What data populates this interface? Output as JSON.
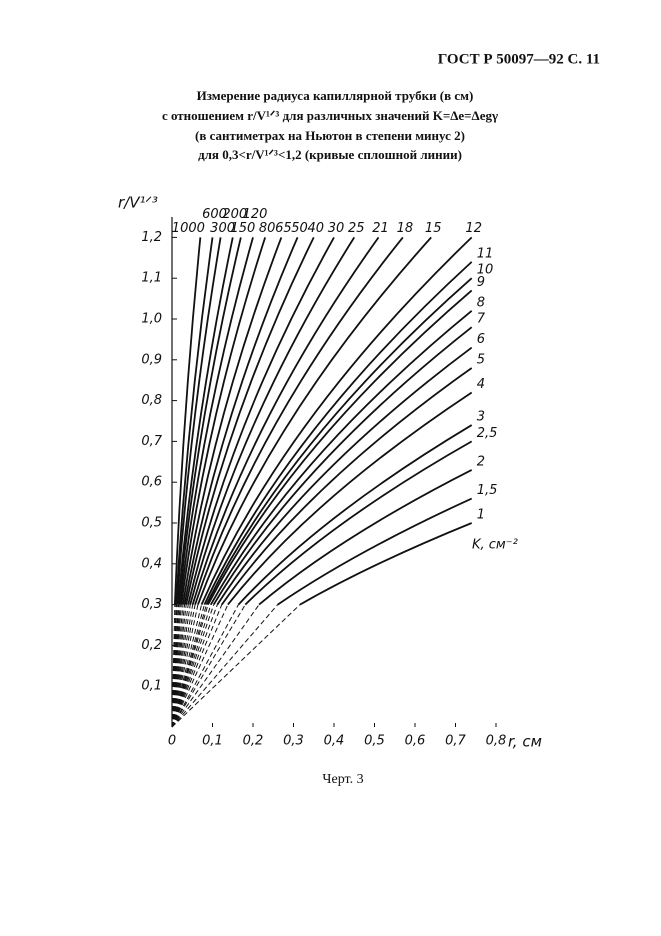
{
  "header": "ГОСТ Р 50097—92 С. 11",
  "caption": "Черт. 3",
  "chart_data": {
    "type": "line",
    "title_lines": [
      "Измерение радиуса капиллярной трубки (в см)",
      "с отношением r/V¹ᐟ³ для различных значений K=Δe=Δegγ",
      "(в сантиметрах на Ньютон в степени минус 2)",
      "для 0,3<r/V¹ᐟ³<1,2 (кривые сплошной линии)"
    ],
    "x_label": "r, см",
    "y_label": "r/V¹ᐟ³",
    "series_label": "K, см⁻²",
    "xlim": [
      0,
      0.8
    ],
    "ylim": [
      0,
      1.25
    ],
    "xticks": [
      0,
      {
        "value": 0.1,
        "label": "0,1"
      },
      {
        "value": 0.2,
        "label": "0,2"
      },
      {
        "value": 0.3,
        "label": "0,3"
      },
      {
        "value": 0.4,
        "label": "0,4"
      },
      {
        "value": 0.5,
        "label": "0,5"
      },
      {
        "value": 0.6,
        "label": "0,6"
      },
      {
        "value": 0.7,
        "label": "0,7"
      },
      {
        "value": 0.8,
        "label": "0,8"
      }
    ],
    "yticks": [
      {
        "value": 0.1,
        "label": "0,1"
      },
      {
        "value": 0.2,
        "label": "0,2"
      },
      {
        "value": 0.3,
        "label": "0,3"
      },
      {
        "value": 0.4,
        "label": "0,4"
      },
      {
        "value": 0.5,
        "label": "0,5"
      },
      {
        "value": 0.6,
        "label": "0,6"
      },
      {
        "value": 0.7,
        "label": "0,7"
      },
      {
        "value": 0.8,
        "label": "0,8"
      },
      {
        "value": 0.9,
        "label": "0,9"
      },
      {
        "value": 1.0,
        "label": "1,0"
      },
      {
        "value": 1.1,
        "label": "1,1"
      },
      {
        "value": 1.2,
        "label": "1,2"
      }
    ],
    "series": [
      {
        "name": "1000",
        "color": "#111",
        "x": [
          0,
          0.007,
          0.032,
          0.07
        ],
        "values": [
          0,
          0.3,
          0.75,
          1.2
        ]
      },
      {
        "name": "600",
        "color": "#111",
        "x": [
          0,
          0.01,
          0.046,
          0.1
        ],
        "values": [
          0,
          0.3,
          0.75,
          1.2
        ]
      },
      {
        "name": "300",
        "color": "#111",
        "x": [
          0,
          0.012,
          0.055,
          0.12
        ],
        "values": [
          0,
          0.3,
          0.75,
          1.2
        ]
      },
      {
        "name": "200",
        "color": "#111",
        "x": [
          0,
          0.015,
          0.069,
          0.15
        ],
        "values": [
          0,
          0.3,
          0.75,
          1.2
        ]
      },
      {
        "name": "150",
        "color": "#111",
        "x": [
          0,
          0.017,
          0.078,
          0.17
        ],
        "values": [
          0,
          0.3,
          0.75,
          1.2
        ]
      },
      {
        "name": "120",
        "color": "#111",
        "x": [
          0,
          0.02,
          0.091,
          0.2
        ],
        "values": [
          0,
          0.3,
          0.75,
          1.2
        ]
      },
      {
        "name": "80",
        "color": "#111",
        "x": [
          0,
          0.023,
          0.105,
          0.23
        ],
        "values": [
          0,
          0.3,
          0.75,
          1.2
        ]
      },
      {
        "name": "65",
        "color": "#111",
        "x": [
          0,
          0.027,
          0.123,
          0.27
        ],
        "values": [
          0,
          0.3,
          0.75,
          1.2
        ]
      },
      {
        "name": "50",
        "color": "#111",
        "x": [
          0,
          0.031,
          0.142,
          0.31
        ],
        "values": [
          0,
          0.3,
          0.75,
          1.2
        ]
      },
      {
        "name": "40",
        "color": "#111",
        "x": [
          0,
          0.035,
          0.16,
          0.35
        ],
        "values": [
          0,
          0.3,
          0.75,
          1.2
        ]
      },
      {
        "name": "30",
        "color": "#111",
        "x": [
          0,
          0.04,
          0.183,
          0.4
        ],
        "values": [
          0,
          0.3,
          0.75,
          1.2
        ]
      },
      {
        "name": "25",
        "color": "#111",
        "x": [
          0,
          0.045,
          0.206,
          0.45
        ],
        "values": [
          0,
          0.3,
          0.75,
          1.2
        ]
      },
      {
        "name": "21",
        "color": "#111",
        "x": [
          0,
          0.051,
          0.233,
          0.51
        ],
        "values": [
          0,
          0.3,
          0.75,
          1.2
        ]
      },
      {
        "name": "18",
        "color": "#111",
        "x": [
          0,
          0.057,
          0.26,
          0.57
        ],
        "values": [
          0,
          0.3,
          0.75,
          1.2
        ]
      },
      {
        "name": "15",
        "color": "#111",
        "x": [
          0,
          0.064,
          0.292,
          0.64
        ],
        "values": [
          0,
          0.3,
          0.75,
          1.2
        ]
      },
      {
        "name": "12",
        "color": "#111",
        "x": [
          0,
          0.073,
          0.338,
          0.74
        ],
        "values": [
          0,
          0.3,
          0.75,
          1.2
        ]
      },
      {
        "name": "11",
        "color": "#111",
        "x": [
          0,
          0.08,
          0.344,
          0.74
        ],
        "values": [
          0,
          0.3,
          0.72,
          1.14
        ]
      },
      {
        "name": "10",
        "color": "#111",
        "x": [
          0,
          0.085,
          0.348,
          0.74
        ],
        "values": [
          0,
          0.3,
          0.7,
          1.1
        ]
      },
      {
        "name": "9",
        "color": "#111",
        "x": [
          0,
          0.089,
          0.352,
          0.74
        ],
        "values": [
          0,
          0.3,
          0.685,
          1.07
        ]
      },
      {
        "name": "8",
        "color": "#111",
        "x": [
          0,
          0.096,
          0.358,
          0.74
        ],
        "values": [
          0,
          0.3,
          0.66,
          1.02
        ]
      },
      {
        "name": "7",
        "color": "#111",
        "x": [
          0,
          0.103,
          0.364,
          0.74
        ],
        "values": [
          0,
          0.3,
          0.64,
          0.98
        ]
      },
      {
        "name": "6",
        "color": "#111",
        "x": [
          0,
          0.112,
          0.371,
          0.74
        ],
        "values": [
          0,
          0.3,
          0.615,
          0.93
        ]
      },
      {
        "name": "5",
        "color": "#111",
        "x": [
          0,
          0.123,
          0.38,
          0.74
        ],
        "values": [
          0,
          0.3,
          0.59,
          0.88
        ]
      },
      {
        "name": "4",
        "color": "#111",
        "x": [
          0,
          0.138,
          0.392,
          0.74
        ],
        "values": [
          0,
          0.3,
          0.56,
          0.82
        ]
      },
      {
        "name": "3",
        "color": "#111",
        "x": [
          0,
          0.164,
          0.411,
          0.74
        ],
        "values": [
          0,
          0.3,
          0.52,
          0.74
        ]
      },
      {
        "name": "2,5",
        "color": "#111",
        "x": [
          0,
          0.181,
          0.423,
          0.74
        ],
        "values": [
          0,
          0.3,
          0.5,
          0.7
        ]
      },
      {
        "name": "2",
        "color": "#111",
        "x": [
          0,
          0.215,
          0.445,
          0.74
        ],
        "values": [
          0,
          0.3,
          0.465,
          0.63
        ]
      },
      {
        "name": "1,5",
        "color": "#111",
        "x": [
          0,
          0.261,
          0.477,
          0.74
        ],
        "values": [
          0,
          0.3,
          0.43,
          0.56
        ]
      },
      {
        "name": "1",
        "color": "#111",
        "x": [
          0,
          0.316,
          0.51,
          0.74
        ],
        "values": [
          0,
          0.3,
          0.4,
          0.5
        ]
      }
    ]
  }
}
